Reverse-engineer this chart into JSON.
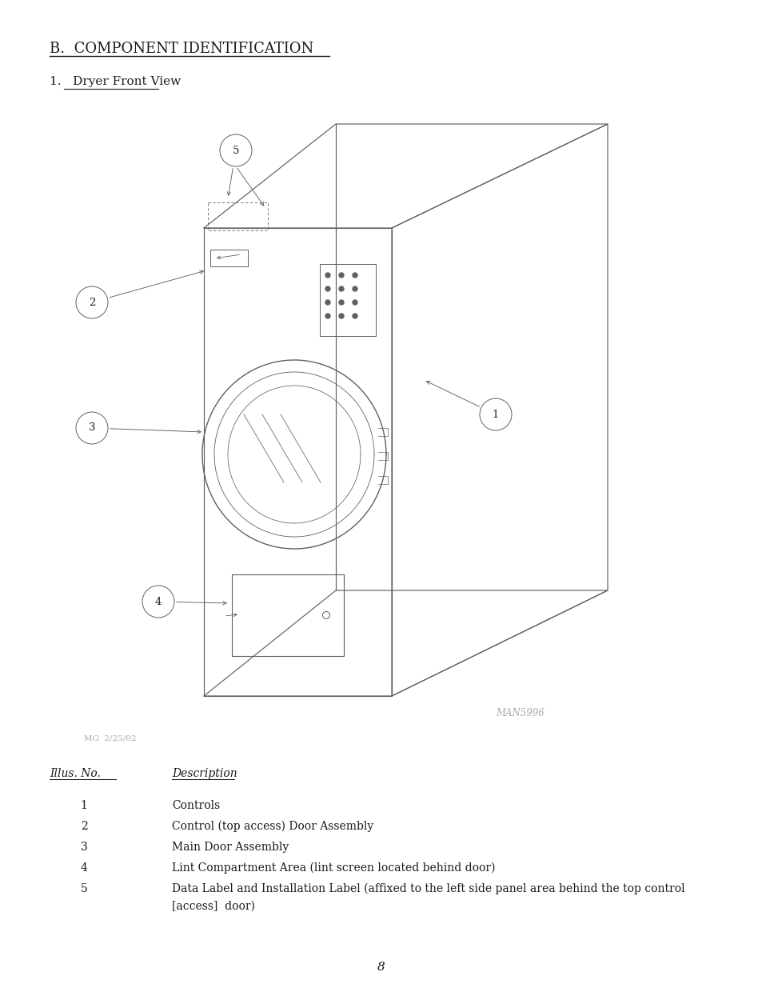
{
  "title": "B.  COMPONENT IDENTIFICATION",
  "subtitle": "1.   Dryer Front View",
  "table_header": [
    "Illus. No.",
    "Description"
  ],
  "table_rows": [
    [
      "1",
      "Controls"
    ],
    [
      "2",
      "Control (top access) Door Assembly"
    ],
    [
      "3",
      "Main Door Assembly"
    ],
    [
      "4",
      "Lint Compartment Area (lint screen located behind door)"
    ],
    [
      "5",
      "Data Label and Installation Label (affixed to the left side panel area behind the top control\n[access]  door)"
    ]
  ],
  "page_number": "8",
  "man_number": "MAN5996",
  "date_label": "MG  2/25/02",
  "bg_color": "#ffffff",
  "text_color": "#1a1a1a",
  "line_color": "#606060",
  "font_size_title": 13,
  "font_size_sub": 11,
  "font_size_table": 10
}
